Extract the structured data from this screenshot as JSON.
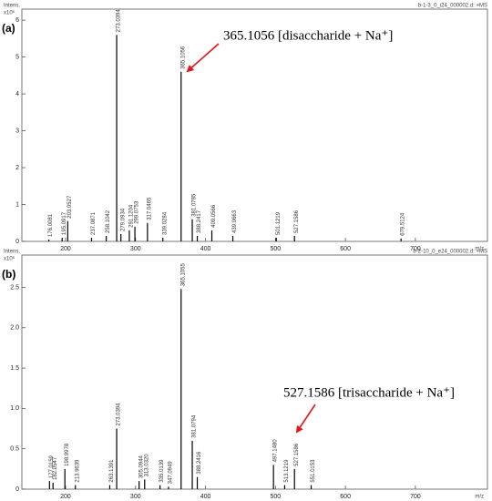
{
  "chart_data": [
    {
      "type": "bar",
      "panel_label": "(a)",
      "title": "b-1-3_0_i24_000002.d: +MS",
      "y_label": "Intens.",
      "y_multiplier": "x10⁶",
      "x_label": "m/z",
      "color": "#000000",
      "annotation": "365.1056 [disaccharide + Na⁺]",
      "annotation_color": "#e8141c",
      "x": [
        176.0081,
        195.0917,
        203.0527,
        237.0871,
        258.1042,
        273.0394,
        279.0934,
        291.1204,
        299.0753,
        317.0465,
        339.0284,
        365.1056,
        381.0785,
        388.2417,
        409.0566,
        439.0663,
        501.1219,
        527.1586,
        679.5124
      ],
      "x_labels": [
        "176.0081",
        "195.0917",
        "203.0527",
        "237.0871",
        "258.1042",
        "273.0394",
        "279.0934",
        "291.1204",
        "299.0753",
        "317.0465",
        "339.0284",
        "365.1056",
        "381.0785",
        "388.2417",
        "409.0566",
        "439.0663",
        "501.1219",
        "527.1586",
        "679.5124"
      ],
      "values": [
        0.05,
        0.1,
        0.55,
        0.1,
        0.15,
        5.6,
        0.2,
        0.3,
        0.4,
        0.5,
        0.1,
        4.6,
        0.6,
        0.15,
        0.3,
        0.15,
        0.1,
        0.15,
        0.08
      ],
      "xlim": [
        137.5,
        803
      ],
      "xticks": [
        200,
        300,
        400,
        500,
        600,
        700
      ],
      "ylim": [
        0,
        6.3
      ],
      "yticks": [
        0,
        1,
        2,
        3,
        4,
        5,
        6
      ]
    },
    {
      "type": "bar",
      "panel_label": "(b)",
      "title": "b-2-10_0_e24_000002.d: +MS",
      "y_label": "Intens.",
      "y_multiplier": "x10⁶",
      "x_label": "m/z",
      "color": "#000000",
      "annotation": "527.1586 [trisaccharide + Na⁺]",
      "annotation_color": "#e8141c",
      "x": [
        177.0159,
        182.0547,
        198.9978,
        213.9639,
        263.1391,
        273.0394,
        305.0944,
        313.032,
        335.0139,
        347.0949,
        365.1055,
        381.0794,
        388.2416,
        497.148,
        513.1219,
        527.1586,
        551.0153
      ],
      "x_labels": [
        "177.0159",
        "182.0547",
        "198.9978",
        "213.9639",
        "263.1391",
        "273.0394",
        "305.0944",
        "313.0320",
        "335.0139",
        "347.0949",
        "365.1055",
        "381.0794",
        "388.2416",
        "497.1480",
        "513.1219",
        "527.1586",
        "551.0153"
      ],
      "values": [
        0.1,
        0.08,
        0.25,
        0.05,
        0.05,
        0.75,
        0.1,
        0.12,
        0.05,
        0.03,
        2.48,
        0.6,
        0.15,
        0.3,
        0.05,
        0.25,
        0.05
      ],
      "xlim": [
        137.5,
        803
      ],
      "xticks": [
        200,
        300,
        400,
        500,
        600,
        700
      ],
      "ylim": [
        0,
        2.9
      ],
      "yticks": [
        0,
        0.5,
        {
          "value": 1,
          "label": "1.0"
        },
        1.5,
        {
          "value": 2,
          "label": "2.0"
        },
        2.5
      ]
    }
  ]
}
